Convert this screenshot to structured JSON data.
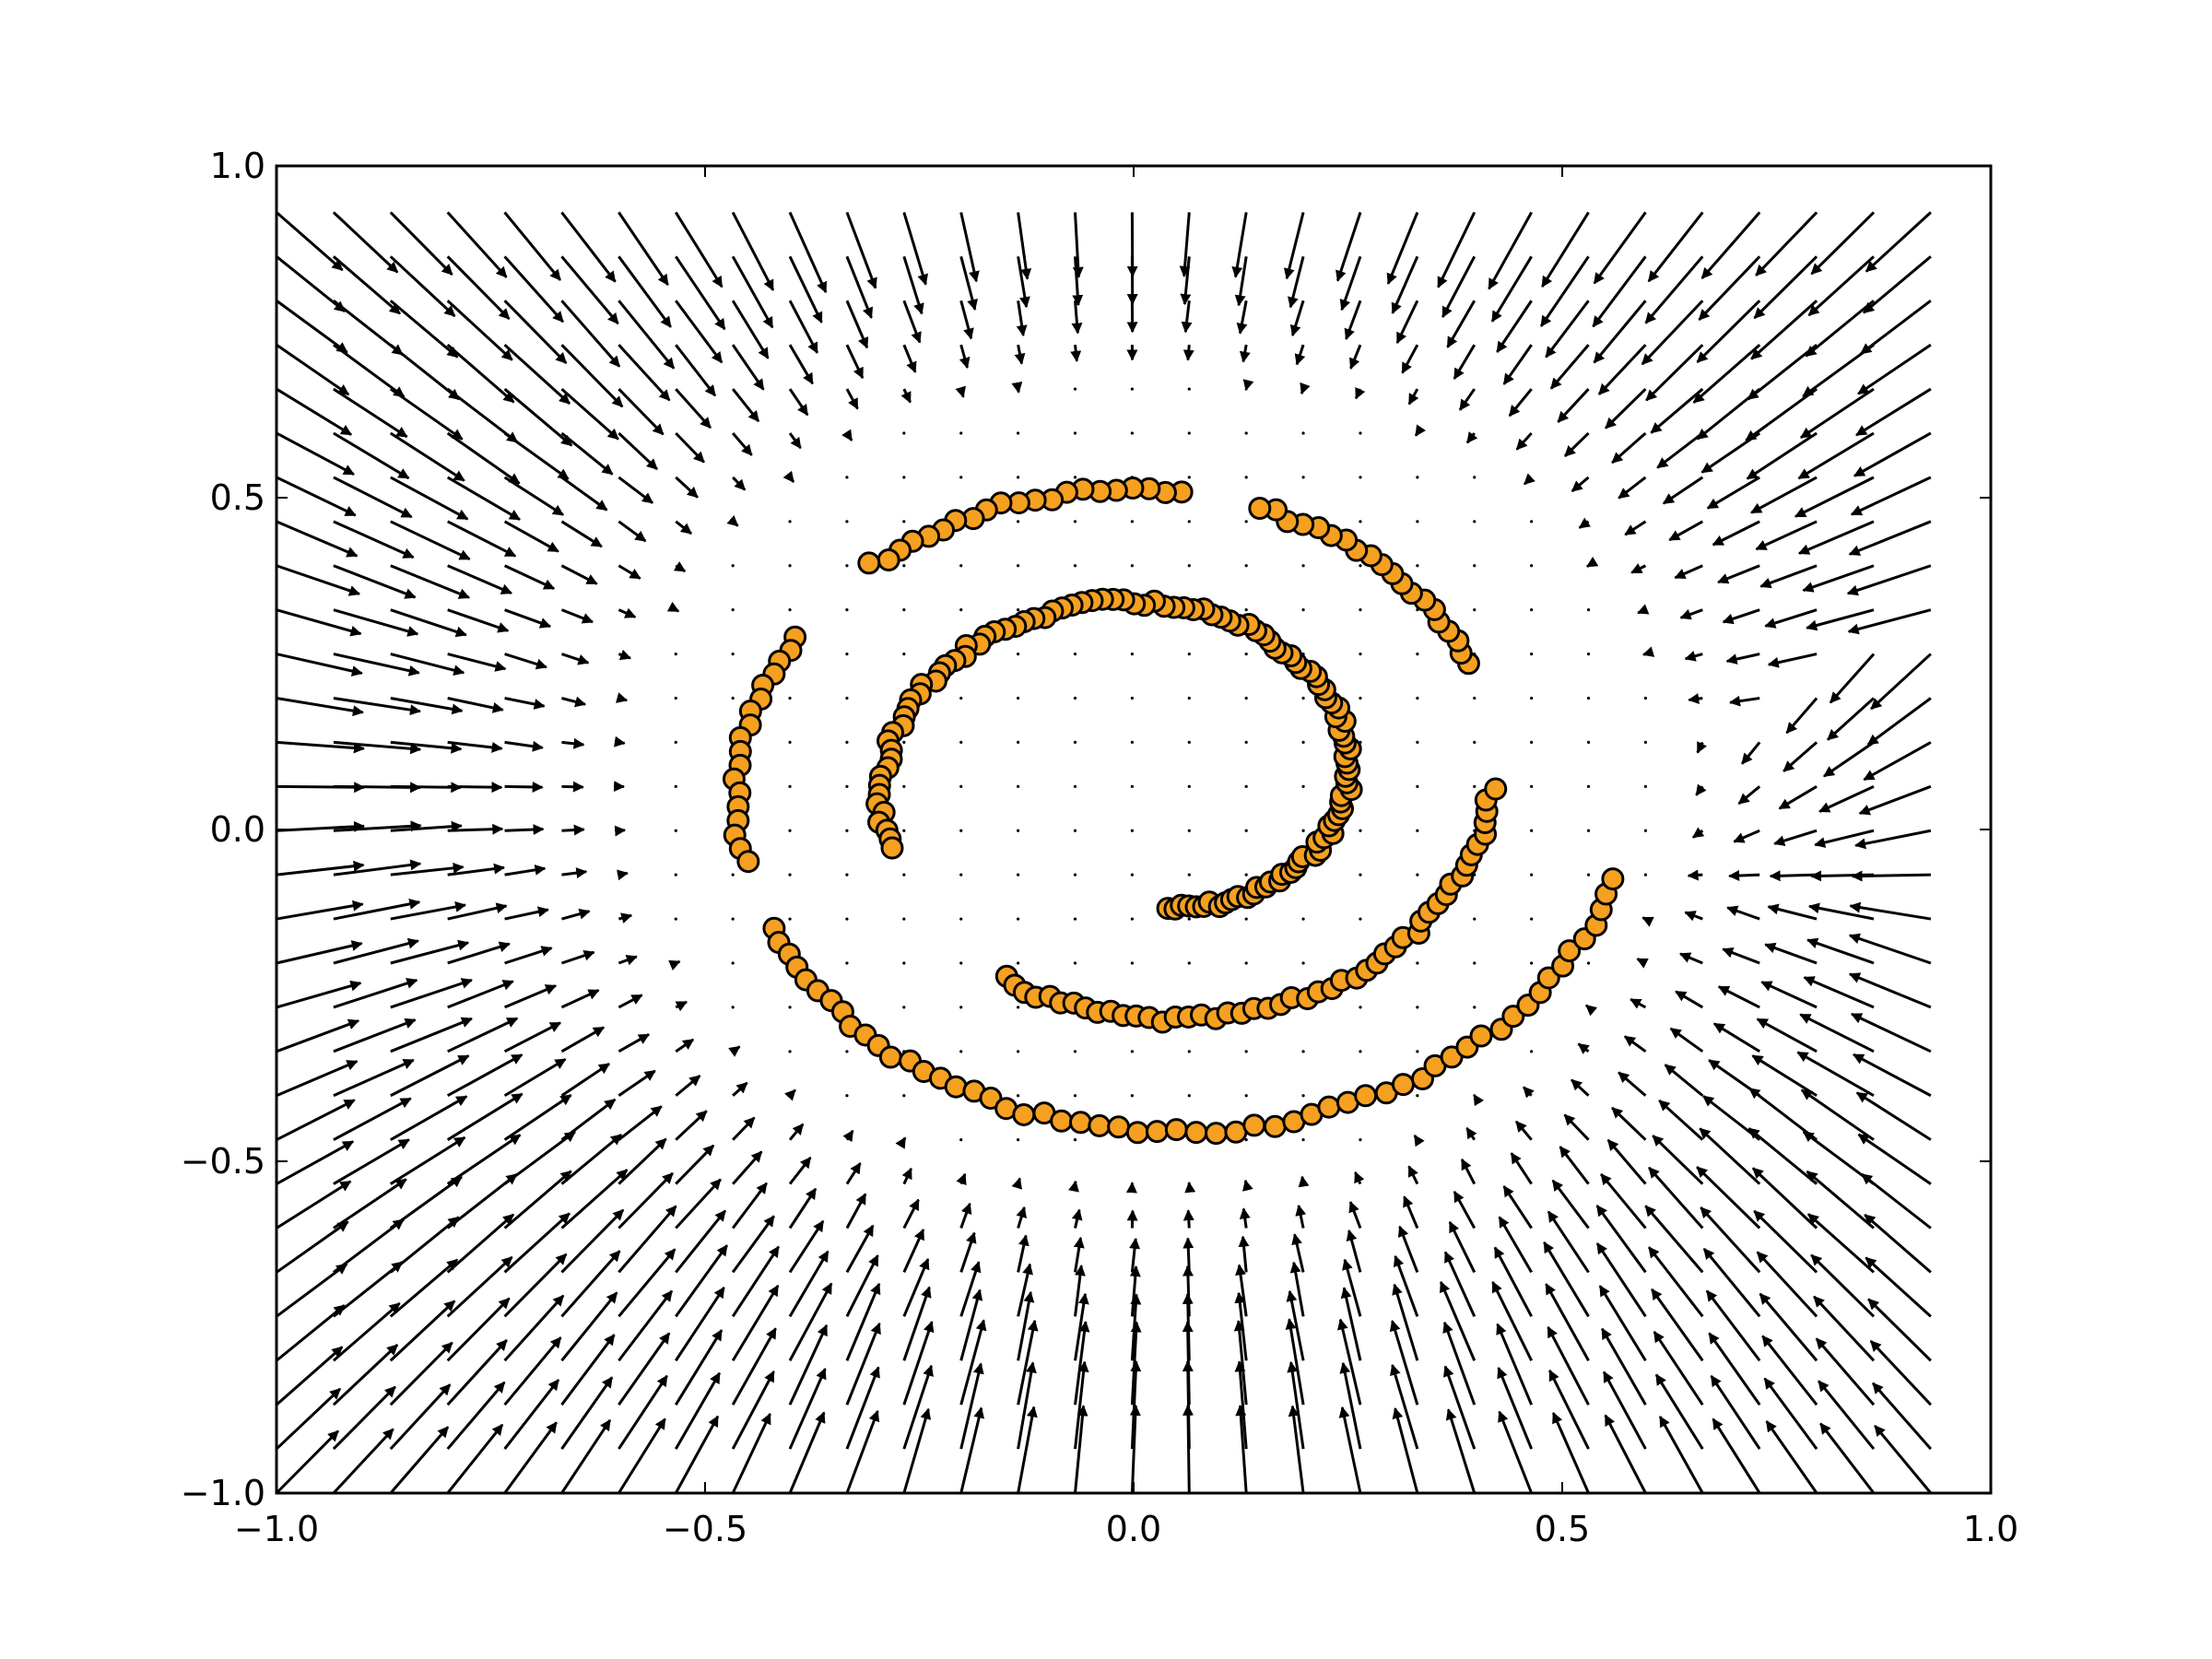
{
  "chart_data": {
    "type": "scatter",
    "title": "",
    "xlabel": "",
    "ylabel": "",
    "xlim": [
      -1.0,
      1.0
    ],
    "ylim": [
      -1.0,
      1.0
    ],
    "grid": false,
    "legend": "none",
    "x_ticks": [
      -1.0,
      -0.5,
      0.0,
      0.5,
      1.0
    ],
    "x_tick_labels": [
      "−1.0",
      "−0.5",
      "0.0",
      "0.5",
      "1.0"
    ],
    "y_ticks": [
      -1.0,
      -0.5,
      0.0,
      0.5,
      1.0
    ],
    "y_tick_labels": [
      "−1.0",
      "−0.5",
      "0.0",
      "0.5",
      "1.0"
    ],
    "colors": {
      "marker_fill": "#f5a020",
      "marker_edge": "#000000",
      "arrow": "#000000",
      "axes": "#000000"
    },
    "quiver": {
      "description_free": true,
      "x_range": [
        -1.0,
        0.93
      ],
      "y_range": [
        -1.0,
        0.93
      ],
      "columns": 30,
      "rows": 30,
      "field": "attraction toward the spiral curve; near-zero on and between the spiral arms"
    },
    "spiral": {
      "center": [
        0.02,
        0.07
      ],
      "theta_start_deg": 276,
      "theta_end_deg": 1065,
      "r_start": 0.19,
      "r_end": 0.56,
      "gaps": [
        [
          560,
          600
        ],
        [
          720,
          745
        ],
        [
          795,
          805
        ],
        [
          855,
          870
        ],
        [
          915,
          925
        ]
      ],
      "marker_count": 320
    }
  }
}
